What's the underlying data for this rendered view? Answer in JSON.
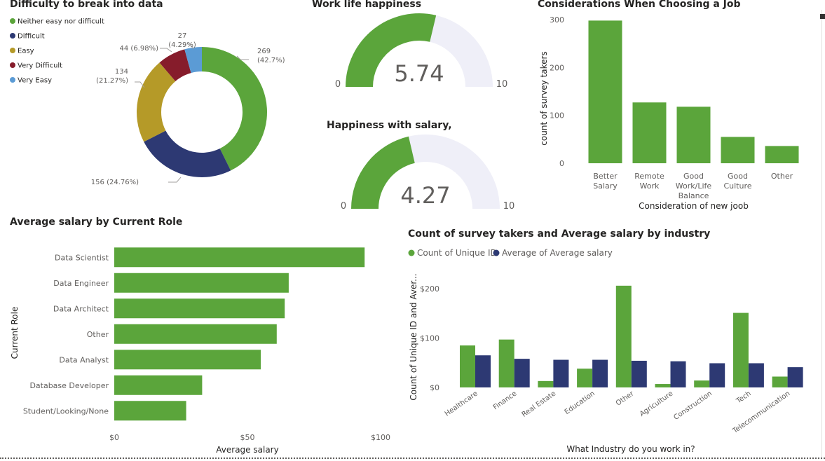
{
  "colors": {
    "green": "#5ba53b",
    "navy": "#2d3973",
    "gold": "#b59a28",
    "maroon": "#861c2b",
    "light_blue": "#5b9bd5",
    "gauge_track": "#efeff8"
  },
  "donut": {
    "title": "Difficulty to break into data",
    "legend": [
      {
        "label": "Neither easy nor difficult",
        "color": "#5ba53b"
      },
      {
        "label": "Difficult",
        "color": "#2d3973"
      },
      {
        "label": "Easy",
        "color": "#b59a28"
      },
      {
        "label": "Very Difficult",
        "color": "#861c2b"
      },
      {
        "label": "Very Easy",
        "color": "#5b9bd5"
      }
    ]
  },
  "gauge1": {
    "title": "Work life happiness",
    "value_text": "5.74",
    "min_label": "0",
    "max_label": "10"
  },
  "gauge2": {
    "title": "Happiness with salary,",
    "value_text": "4.27",
    "min_label": "0",
    "max_label": "10"
  },
  "considerations": {
    "title": "Considerations When Choosing a Job"
  },
  "role_salary": {
    "title": "Average salary by Current Role"
  },
  "industry": {
    "title": "Count of survey takers and Average salary by industry",
    "legend": [
      {
        "label": "Count of Unique ID",
        "color": "#5ba53b"
      },
      {
        "label": "Average of Average salary",
        "color": "#2d3973"
      }
    ]
  },
  "chart_data": [
    {
      "type": "pie",
      "variant": "donut",
      "title": "Difficulty to break into data",
      "categories": [
        "Neither easy nor difficult",
        "Difficult",
        "Easy",
        "Very Difficult",
        "Very Easy"
      ],
      "values": [
        269,
        156,
        134,
        44,
        27
      ],
      "data_labels": [
        [
          "269",
          "(42.7%)"
        ],
        [
          "156 (24.76%)"
        ],
        [
          "134",
          "(21.27%)"
        ],
        [
          "44 (6.98%)"
        ],
        [
          "27",
          "(4.29%)"
        ]
      ],
      "legend_position": "top-left"
    },
    {
      "type": "gauge",
      "title": "Work life happiness",
      "value": 5.74,
      "min": 0,
      "max": 10
    },
    {
      "type": "gauge",
      "title": "Happiness with salary,",
      "value": 4.27,
      "min": 0,
      "max": 10
    },
    {
      "type": "bar",
      "title": "Considerations When Choosing a Job",
      "categories": [
        [
          "Better",
          "Salary"
        ],
        [
          "Remote",
          "Work"
        ],
        [
          "Good",
          "Work/Life",
          "Balance"
        ],
        [
          "Good",
          "Culture"
        ],
        [
          "Other"
        ]
      ],
      "values": [
        298,
        127,
        118,
        55,
        36
      ],
      "xlabel": "Consideration of new joob",
      "ylabel": "count of survey takers",
      "ylim": [
        0,
        300
      ],
      "yticks": [
        "0",
        "100",
        "200",
        "300"
      ],
      "grid": false
    },
    {
      "type": "bar",
      "orientation": "horizontal",
      "title": "Average salary by Current Role",
      "categories": [
        "Data Scientist",
        "Data Engineer",
        "Data Architect",
        "Other",
        "Data Analyst",
        "Database Developer",
        "Student/Looking/None"
      ],
      "values": [
        94,
        65.5,
        64,
        61,
        55,
        33,
        27
      ],
      "xlabel": "Average salary",
      "ylabel": "Current Role",
      "xlim": [
        0,
        100
      ],
      "xticks": [
        "$0",
        "$50",
        "$100"
      ],
      "grid": false
    },
    {
      "type": "bar",
      "title": "Count of survey takers and Average salary by industry",
      "categories": [
        "Healthcare",
        "Finance",
        "Real Estate",
        "Education",
        "Other",
        "Agriculture",
        "Construction",
        "Tech",
        "Telecommunication"
      ],
      "series": [
        {
          "name": "Count of Unique ID",
          "values": [
            85,
            97,
            13,
            38,
            206,
            7,
            14,
            151,
            22
          ]
        },
        {
          "name": "Average of Average salary",
          "values": [
            65,
            58,
            56,
            56,
            54,
            53,
            49,
            49,
            41
          ]
        }
      ],
      "xlabel": "What Industry do you work in?",
      "ylabel": "Count of Unique ID and Aver...",
      "ylim": [
        0,
        210
      ],
      "yticks": [
        "$0",
        "$100",
        "$200"
      ],
      "legend_position": "top-left",
      "grid": false
    }
  ]
}
